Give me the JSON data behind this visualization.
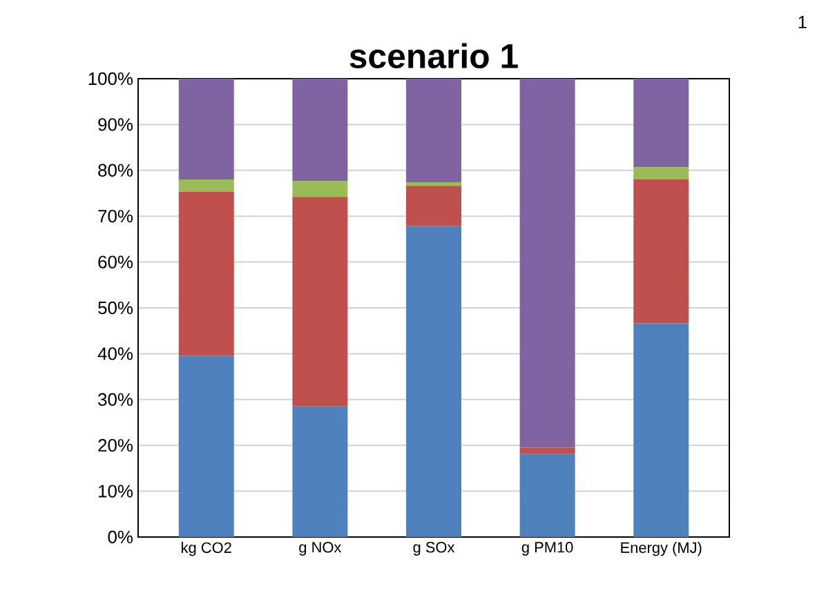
{
  "chart_data": {
    "type": "bar",
    "stacked": true,
    "title": "scenario 1",
    "annotations": [
      "1"
    ],
    "categories": [
      "kg CO2",
      "g NOx",
      "g SOx",
      "g PM10",
      "Energy (MJ)"
    ],
    "series": [
      {
        "color": "#4f81bd",
        "values": [
          39.5,
          28.5,
          67.8,
          18.1,
          46.6
        ]
      },
      {
        "color": "#c0504d",
        "values": [
          35.8,
          45.7,
          8.8,
          1.4,
          31.5
        ]
      },
      {
        "color": "#9bbb59",
        "values": [
          2.7,
          3.5,
          0.8,
          0,
          2.6
        ]
      },
      {
        "color": "#8064a2",
        "values": [
          22.0,
          22.3,
          22.6,
          80.5,
          19.3
        ]
      }
    ],
    "ylim": [
      0,
      100
    ],
    "yticks": [
      {
        "value": 0,
        "label": "0%"
      },
      {
        "value": 10,
        "label": "10%"
      },
      {
        "value": 20,
        "label": "20%"
      },
      {
        "value": 30,
        "label": "30%"
      },
      {
        "value": 40,
        "label": "40%"
      },
      {
        "value": 50,
        "label": "50%"
      },
      {
        "value": 60,
        "label": "60%"
      },
      {
        "value": 70,
        "label": "70%"
      },
      {
        "value": 80,
        "label": "80%"
      },
      {
        "value": 90,
        "label": "90%"
      },
      {
        "value": 100,
        "label": "100%"
      }
    ],
    "grid": "y"
  }
}
